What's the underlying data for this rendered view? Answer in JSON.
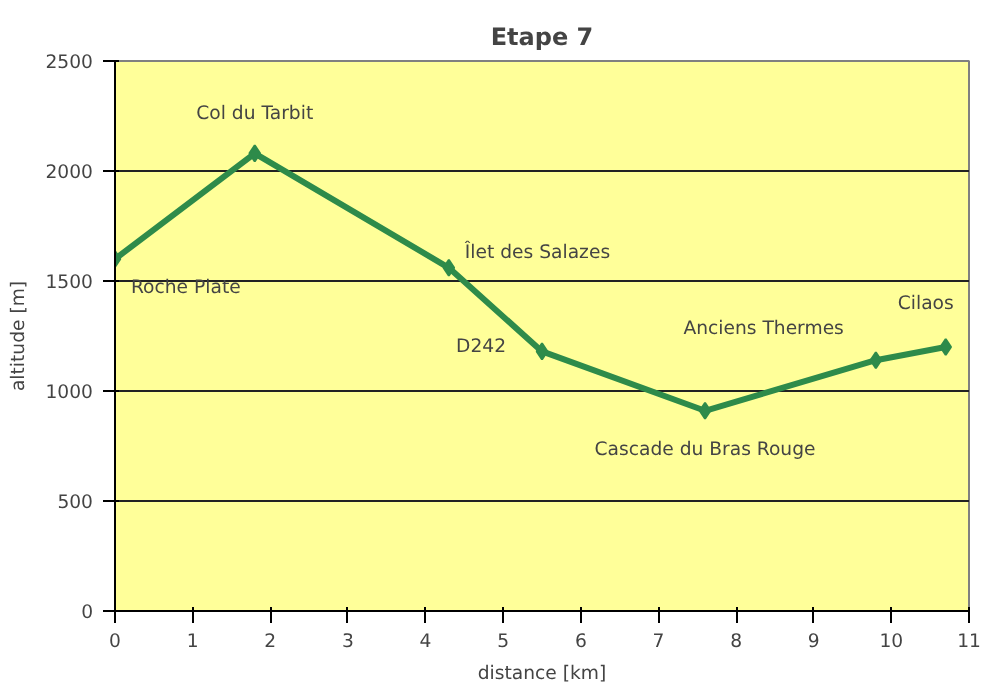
{
  "chart_data": {
    "type": "line",
    "title": "Etape 7",
    "xlabel": "distance [km]",
    "ylabel": "altitude [m]",
    "x": [
      0,
      1.8,
      4.3,
      5.5,
      7.6,
      9.8,
      10.7
    ],
    "series": [
      {
        "color": "#2e8b4a",
        "values": [
          1600,
          2080,
          1560,
          1180,
          910,
          1140,
          1200
        ]
      }
    ],
    "xlim": [
      0,
      11
    ],
    "xticks": [
      0,
      1,
      2,
      3,
      4,
      5,
      6,
      7,
      8,
      9,
      10,
      11
    ],
    "ylim": [
      0,
      2500
    ],
    "yticks": [
      0,
      500,
      1000,
      1500,
      2000,
      2500
    ],
    "grid": "y",
    "marker": "diamond",
    "annotations": [
      {
        "text": "Roche Plate",
        "x": 0,
        "y": 1600
      },
      {
        "text": "Col du Tarbit",
        "x": 1.8,
        "y": 2080
      },
      {
        "text": "Îlet des Salazes",
        "x": 4.3,
        "y": 1560
      },
      {
        "text": "D242",
        "x": 5.5,
        "y": 1180
      },
      {
        "text": "Cascade du Bras Rouge",
        "x": 7.6,
        "y": 910
      },
      {
        "text": "Anciens Thermes",
        "x": 9.8,
        "y": 1140
      },
      {
        "text": "Cilaos",
        "x": 10.7,
        "y": 1200
      }
    ]
  }
}
